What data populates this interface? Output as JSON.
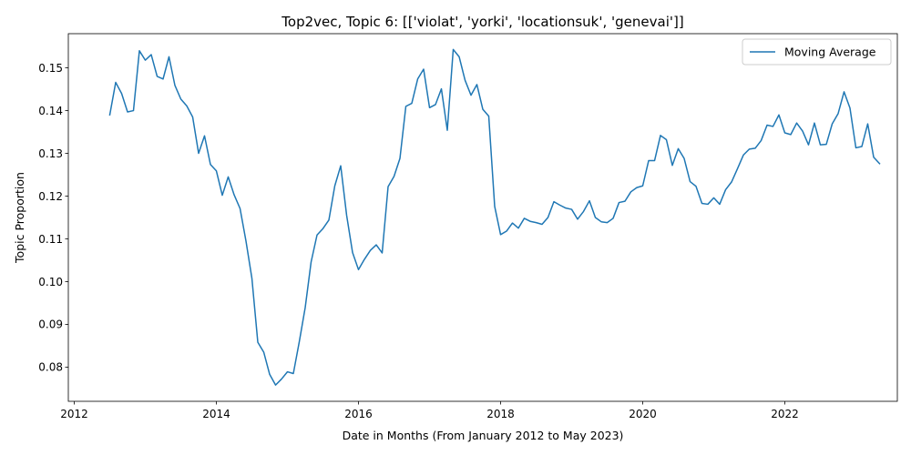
{
  "chart_data": {
    "type": "line",
    "title": "Top2vec, Topic 6: [['violat', 'yorki', 'locationsuk', 'genevai']]",
    "xlabel": "Date in Months (From January 2012 to May 2023)",
    "ylabel": "Topic Proportion",
    "x_tick_labels": [
      "2012",
      "2014",
      "2016",
      "2018",
      "2020",
      "2022"
    ],
    "y_tick_labels": [
      "0.08",
      "0.09",
      "0.10",
      "0.11",
      "0.12",
      "0.13",
      "0.14",
      "0.15"
    ],
    "ylim": [
      0.072,
      0.158
    ],
    "xlim": [
      "2011-12",
      "2023-08"
    ],
    "legend": {
      "position": "upper right",
      "entries": [
        "Moving Average"
      ]
    },
    "grid": false,
    "series": [
      {
        "name": "Moving Average",
        "color": "#1f77b4",
        "points": [
          [
            "2012-07",
            0.139
          ],
          [
            "2012-08",
            0.1466
          ],
          [
            "2012-09",
            0.144
          ],
          [
            "2012-10",
            0.1397
          ],
          [
            "2012-11",
            0.14
          ],
          [
            "2012-12",
            0.154
          ],
          [
            "2013-01",
            0.1518
          ],
          [
            "2013-02",
            0.1531
          ],
          [
            "2013-03",
            0.148
          ],
          [
            "2013-04",
            0.1474
          ],
          [
            "2013-05",
            0.1526
          ],
          [
            "2013-06",
            0.1459
          ],
          [
            "2013-07",
            0.1427
          ],
          [
            "2013-08",
            0.1411
          ],
          [
            "2013-09",
            0.1385
          ],
          [
            "2013-10",
            0.13
          ],
          [
            "2013-11",
            0.1341
          ],
          [
            "2013-12",
            0.1274
          ],
          [
            "2014-01",
            0.1259
          ],
          [
            "2014-02",
            0.1202
          ],
          [
            "2014-03",
            0.1245
          ],
          [
            "2014-04",
            0.1203
          ],
          [
            "2014-05",
            0.1171
          ],
          [
            "2014-06",
            0.1095
          ],
          [
            "2014-07",
            0.1008
          ],
          [
            "2014-08",
            0.0858
          ],
          [
            "2014-09",
            0.0835
          ],
          [
            "2014-10",
            0.0783
          ],
          [
            "2014-11",
            0.0758
          ],
          [
            "2014-12",
            0.0772
          ],
          [
            "2015-01",
            0.0789
          ],
          [
            "2015-02",
            0.0785
          ],
          [
            "2015-03",
            0.0859
          ],
          [
            "2015-04",
            0.0939
          ],
          [
            "2015-05",
            0.1046
          ],
          [
            "2015-06",
            0.1109
          ],
          [
            "2015-07",
            0.1124
          ],
          [
            "2015-08",
            0.1144
          ],
          [
            "2015-09",
            0.1224
          ],
          [
            "2015-10",
            0.1271
          ],
          [
            "2015-11",
            0.1155
          ],
          [
            "2015-12",
            0.1068
          ],
          [
            "2016-01",
            0.1028
          ],
          [
            "2016-02",
            0.1052
          ],
          [
            "2016-03",
            0.1073
          ],
          [
            "2016-04",
            0.1086
          ],
          [
            "2016-05",
            0.1067
          ],
          [
            "2016-06",
            0.1222
          ],
          [
            "2016-07",
            0.1246
          ],
          [
            "2016-08",
            0.1288
          ],
          [
            "2016-09",
            0.141
          ],
          [
            "2016-10",
            0.1417
          ],
          [
            "2016-11",
            0.1474
          ],
          [
            "2016-12",
            0.1497
          ],
          [
            "2017-01",
            0.1407
          ],
          [
            "2017-02",
            0.1414
          ],
          [
            "2017-03",
            0.1451
          ],
          [
            "2017-04",
            0.1354
          ],
          [
            "2017-05",
            0.1543
          ],
          [
            "2017-06",
            0.1526
          ],
          [
            "2017-07",
            0.1471
          ],
          [
            "2017-08",
            0.1436
          ],
          [
            "2017-09",
            0.1461
          ],
          [
            "2017-10",
            0.1403
          ],
          [
            "2017-11",
            0.1387
          ],
          [
            "2017-12",
            0.1176
          ],
          [
            "2018-01",
            0.111
          ],
          [
            "2018-02",
            0.1118
          ],
          [
            "2018-03",
            0.1137
          ],
          [
            "2018-04",
            0.1125
          ],
          [
            "2018-05",
            0.1148
          ],
          [
            "2018-06",
            0.1141
          ],
          [
            "2018-07",
            0.1138
          ],
          [
            "2018-08",
            0.1134
          ],
          [
            "2018-09",
            0.115
          ],
          [
            "2018-10",
            0.1187
          ],
          [
            "2018-11",
            0.1179
          ],
          [
            "2018-12",
            0.1172
          ],
          [
            "2019-01",
            0.1169
          ],
          [
            "2019-02",
            0.1146
          ],
          [
            "2019-03",
            0.1164
          ],
          [
            "2019-04",
            0.1189
          ],
          [
            "2019-05",
            0.115
          ],
          [
            "2019-06",
            0.114
          ],
          [
            "2019-07",
            0.1138
          ],
          [
            "2019-08",
            0.1148
          ],
          [
            "2019-09",
            0.1185
          ],
          [
            "2019-10",
            0.1188
          ],
          [
            "2019-11",
            0.121
          ],
          [
            "2019-12",
            0.122
          ],
          [
            "2020-01",
            0.1224
          ],
          [
            "2020-02",
            0.1283
          ],
          [
            "2020-03",
            0.1283
          ],
          [
            "2020-04",
            0.1342
          ],
          [
            "2020-05",
            0.1332
          ],
          [
            "2020-06",
            0.1272
          ],
          [
            "2020-07",
            0.1311
          ],
          [
            "2020-08",
            0.1288
          ],
          [
            "2020-09",
            0.1234
          ],
          [
            "2020-10",
            0.1223
          ],
          [
            "2020-11",
            0.1183
          ],
          [
            "2020-12",
            0.1181
          ],
          [
            "2021-01",
            0.1196
          ],
          [
            "2021-02",
            0.1181
          ],
          [
            "2021-03",
            0.1215
          ],
          [
            "2021-04",
            0.1233
          ],
          [
            "2021-05",
            0.1264
          ],
          [
            "2021-06",
            0.1296
          ],
          [
            "2021-07",
            0.131
          ],
          [
            "2021-08",
            0.1312
          ],
          [
            "2021-09",
            0.133
          ],
          [
            "2021-10",
            0.1366
          ],
          [
            "2021-11",
            0.1363
          ],
          [
            "2021-12",
            0.139
          ],
          [
            "2022-01",
            0.1348
          ],
          [
            "2022-02",
            0.1344
          ],
          [
            "2022-03",
            0.1371
          ],
          [
            "2022-04",
            0.1352
          ],
          [
            "2022-05",
            0.132
          ],
          [
            "2022-06",
            0.1371
          ],
          [
            "2022-07",
            0.132
          ],
          [
            "2022-08",
            0.1321
          ],
          [
            "2022-09",
            0.1369
          ],
          [
            "2022-10",
            0.1393
          ],
          [
            "2022-11",
            0.1444
          ],
          [
            "2022-12",
            0.1406
          ],
          [
            "2023-01",
            0.1313
          ],
          [
            "2023-02",
            0.1316
          ],
          [
            "2023-03",
            0.1369
          ],
          [
            "2023-04",
            0.1291
          ],
          [
            "2023-05",
            0.1276
          ]
        ]
      }
    ]
  }
}
